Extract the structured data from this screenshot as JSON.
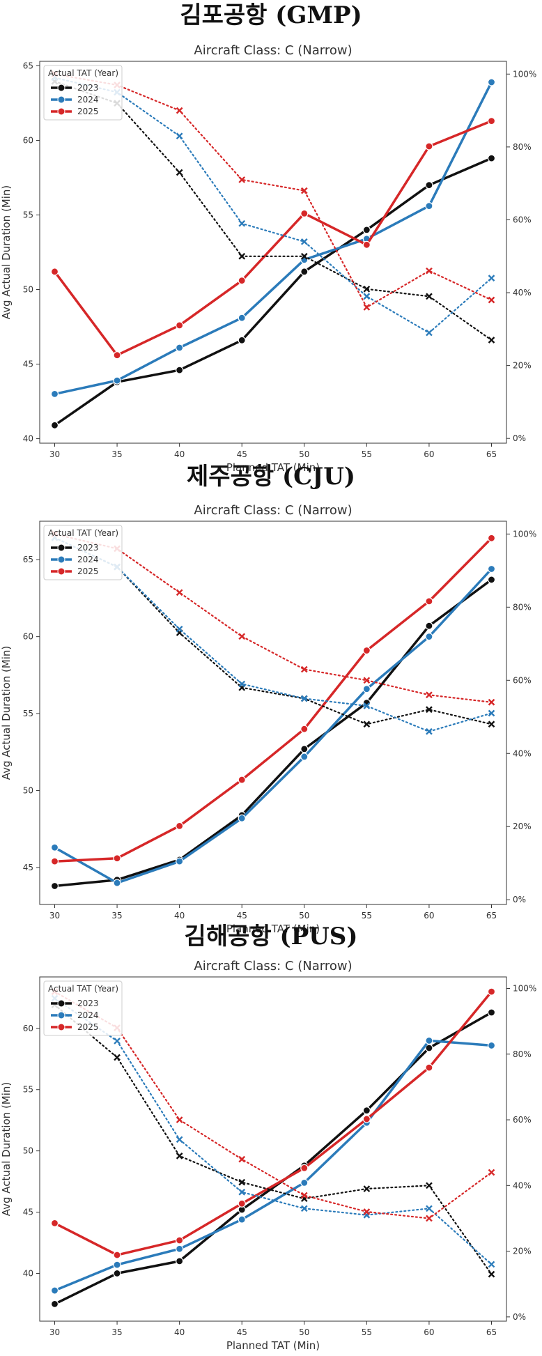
{
  "sections": [
    {
      "heading": "김포공항 (GMP)"
    },
    {
      "heading": "제주공항 (CJU)"
    },
    {
      "heading": "김해공항 (PUS)"
    }
  ],
  "colors": {
    "2023": "#111111",
    "2024": "#2b7bba",
    "2025": "#d62728"
  },
  "chart_data": [
    {
      "type": "line",
      "title": "Aircraft Class: C (Narrow)",
      "xlabel": "Planned TAT (Min)",
      "ylabel": "Avg Actual Duration (Min)",
      "x": [
        30,
        35,
        40,
        45,
        50,
        55,
        60,
        65
      ],
      "ylim": [
        39.7,
        65.3
      ],
      "yticks": [
        40,
        45,
        50,
        55,
        60,
        65
      ],
      "y2lim": [
        0,
        100
      ],
      "y2ticks": [
        "0%",
        "20%",
        "40%",
        "60%",
        "80%",
        "100%"
      ],
      "legend_title": "Actual TAT (Year)",
      "legend_position": "upper-left",
      "grid": false,
      "series": [
        {
          "name": "2023",
          "axis": "left",
          "style": "solid",
          "marker": "circle",
          "values": [
            40.9,
            43.8,
            44.6,
            46.6,
            51.2,
            54.0,
            57.0,
            58.8
          ]
        },
        {
          "name": "2024",
          "axis": "left",
          "style": "solid",
          "marker": "circle",
          "values": [
            43.0,
            43.9,
            46.1,
            48.1,
            52.0,
            53.4,
            55.6,
            63.9
          ]
        },
        {
          "name": "2025",
          "axis": "left",
          "style": "solid",
          "marker": "circle",
          "values": [
            51.2,
            45.6,
            47.6,
            50.6,
            55.1,
            53.0,
            59.6,
            61.3
          ]
        },
        {
          "name": "2023",
          "axis": "right",
          "style": "dotted",
          "marker": "x",
          "values": [
            98,
            92,
            73,
            50,
            50,
            41,
            39,
            27
          ]
        },
        {
          "name": "2024",
          "axis": "right",
          "style": "dotted",
          "marker": "x",
          "values": [
            99,
            95,
            83,
            59,
            54,
            39,
            29,
            44
          ]
        },
        {
          "name": "2025",
          "axis": "right",
          "style": "dotted",
          "marker": "x",
          "values": [
            100,
            97,
            90,
            71,
            68,
            36,
            46,
            38
          ]
        }
      ]
    },
    {
      "type": "line",
      "title": "Aircraft Class: C (Narrow)",
      "xlabel": "Planned TAT (Min)",
      "ylabel": "Avg Actual Duration (Min)",
      "x": [
        30,
        35,
        40,
        45,
        50,
        55,
        60,
        65
      ],
      "ylim": [
        42.6,
        67.5
      ],
      "yticks": [
        45,
        50,
        55,
        60,
        65
      ],
      "y2lim": [
        0,
        100
      ],
      "y2ticks": [
        "0%",
        "20%",
        "40%",
        "60%",
        "80%",
        "100%"
      ],
      "legend_title": "Actual TAT (Year)",
      "legend_position": "upper-left",
      "grid": false,
      "series": [
        {
          "name": "2023",
          "axis": "left",
          "style": "solid",
          "marker": "circle",
          "values": [
            43.8,
            44.2,
            45.5,
            48.4,
            52.7,
            55.7,
            60.7,
            63.7
          ]
        },
        {
          "name": "2024",
          "axis": "left",
          "style": "solid",
          "marker": "circle",
          "values": [
            46.3,
            44.0,
            45.4,
            48.2,
            52.2,
            56.6,
            60.0,
            64.4
          ]
        },
        {
          "name": "2025",
          "axis": "left",
          "style": "solid",
          "marker": "circle",
          "values": [
            45.4,
            45.6,
            47.7,
            50.7,
            54.0,
            59.1,
            62.3,
            66.4
          ]
        },
        {
          "name": "2023",
          "axis": "right",
          "style": "dotted",
          "marker": "x",
          "values": [
            99,
            91,
            73,
            58,
            55,
            48,
            52,
            48
          ]
        },
        {
          "name": "2024",
          "axis": "right",
          "style": "dotted",
          "marker": "x",
          "values": [
            99,
            91,
            74,
            59,
            55,
            53,
            46,
            51
          ]
        },
        {
          "name": "2025",
          "axis": "right",
          "style": "dotted",
          "marker": "x",
          "values": [
            100,
            96,
            84,
            72,
            63,
            60,
            56,
            54
          ]
        }
      ]
    },
    {
      "type": "line",
      "title": "Aircraft Class: C (Narrow)",
      "xlabel": "Planned TAT (Min)",
      "ylabel": "Avg Actual Duration (Min)",
      "x": [
        30,
        35,
        40,
        45,
        50,
        55,
        60,
        65
      ],
      "ylim": [
        36.1,
        64.2
      ],
      "yticks": [
        40,
        45,
        50,
        55,
        60
      ],
      "y2lim": [
        0,
        100
      ],
      "y2ticks": [
        "0%",
        "20%",
        "40%",
        "60%",
        "80%",
        "100%"
      ],
      "legend_title": "Actual TAT (Year)",
      "legend_position": "upper-left",
      "grid": false,
      "series": [
        {
          "name": "2023",
          "axis": "left",
          "style": "solid",
          "marker": "circle",
          "values": [
            37.5,
            40.0,
            41.0,
            45.2,
            48.8,
            53.3,
            58.4,
            61.3
          ]
        },
        {
          "name": "2024",
          "axis": "left",
          "style": "solid",
          "marker": "circle",
          "values": [
            38.6,
            40.7,
            42.0,
            44.4,
            47.4,
            52.3,
            59.0,
            58.6
          ]
        },
        {
          "name": "2025",
          "axis": "left",
          "style": "solid",
          "marker": "circle",
          "values": [
            44.1,
            41.5,
            42.7,
            45.7,
            48.6,
            52.6,
            56.8,
            63.0
          ]
        },
        {
          "name": "2023",
          "axis": "right",
          "style": "dotted",
          "marker": "x",
          "values": [
            95,
            79,
            49,
            41,
            36,
            39,
            40,
            13
          ]
        },
        {
          "name": "2024",
          "axis": "right",
          "style": "dotted",
          "marker": "x",
          "values": [
            97,
            84,
            54,
            38,
            33,
            31,
            33,
            16
          ]
        },
        {
          "name": "2025",
          "axis": "right",
          "style": "dotted",
          "marker": "x",
          "values": [
            99,
            88,
            60,
            48,
            37,
            32,
            30,
            44
          ]
        }
      ]
    }
  ]
}
